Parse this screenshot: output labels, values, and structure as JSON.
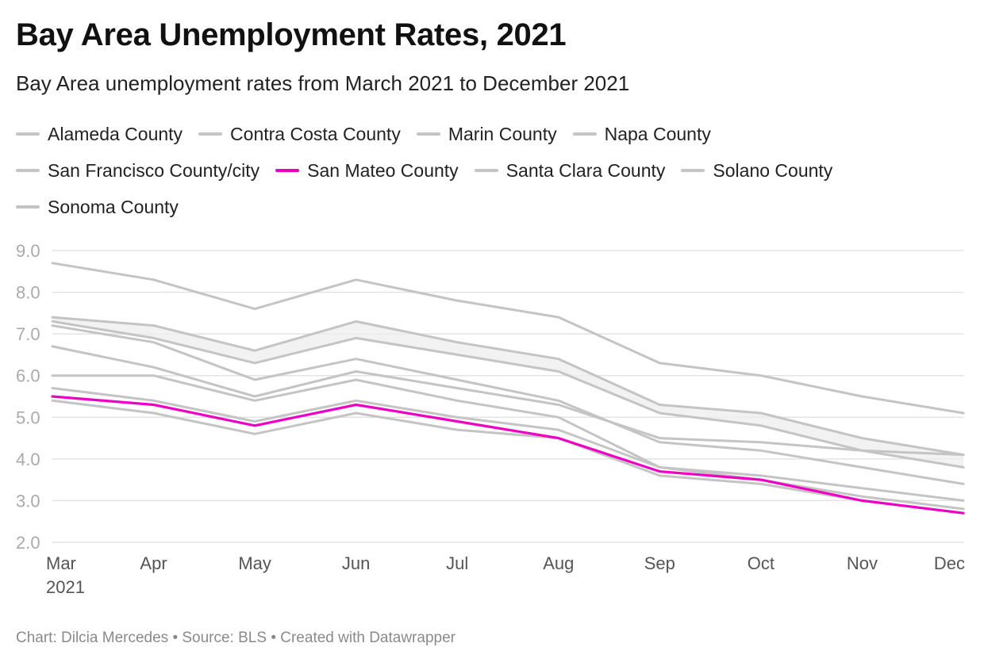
{
  "colors": {
    "muted": "#c4c4c4",
    "highlight": "#ee00c4",
    "band": "#eeeeee",
    "grid": "#e3e3e3"
  },
  "chart_data": {
    "type": "line",
    "title": "Bay Area Unemployment Rates, 2021",
    "subtitle": "Bay Area unemployment rates from March 2021 to December 2021",
    "xlabel": "",
    "ylabel": "",
    "x": [
      "Mar",
      "Apr",
      "May",
      "Jun",
      "Jul",
      "Aug",
      "Sep",
      "Oct",
      "Nov",
      "Dec"
    ],
    "x_year_label": "2021",
    "ylim": [
      2.0,
      9.0
    ],
    "yticks": [
      "9.0",
      "8.0",
      "7.0",
      "6.0",
      "5.0",
      "4.0",
      "3.0",
      "2.0"
    ],
    "grid": true,
    "legend_position": "top",
    "highlight": "San Mateo County",
    "series": [
      {
        "name": "Alameda County",
        "values": [
          7.2,
          6.8,
          5.9,
          6.4,
          5.9,
          5.4,
          4.4,
          4.2,
          3.8,
          3.4
        ]
      },
      {
        "name": "Contra Costa County",
        "values": [
          7.4,
          7.2,
          6.6,
          7.3,
          6.8,
          6.4,
          5.3,
          5.1,
          4.5,
          4.1
        ]
      },
      {
        "name": "Marin County",
        "values": [
          5.4,
          5.1,
          4.6,
          5.1,
          4.7,
          4.5,
          3.6,
          3.4,
          3.0,
          2.7
        ]
      },
      {
        "name": "Napa County",
        "values": [
          6.0,
          6.0,
          5.4,
          5.9,
          5.4,
          5.0,
          3.8,
          3.6,
          3.3,
          3.0
        ]
      },
      {
        "name": "San Francisco County/city",
        "values": [
          5.7,
          5.4,
          4.9,
          5.4,
          5.0,
          4.7,
          3.8,
          3.5,
          3.1,
          2.8
        ]
      },
      {
        "name": "San Mateo County",
        "values": [
          5.5,
          5.3,
          4.8,
          5.3,
          4.9,
          4.5,
          3.7,
          3.5,
          3.0,
          2.7
        ]
      },
      {
        "name": "Santa Clara County",
        "values": [
          6.7,
          6.2,
          5.5,
          6.1,
          5.7,
          5.3,
          4.5,
          4.4,
          4.2,
          4.1
        ]
      },
      {
        "name": "Solano County",
        "values": [
          8.7,
          8.3,
          7.6,
          8.3,
          7.8,
          7.4,
          6.3,
          6.0,
          5.5,
          5.1
        ]
      },
      {
        "name": "Sonoma County",
        "values": [
          7.3,
          6.9,
          6.3,
          6.9,
          6.5,
          6.1,
          5.1,
          4.8,
          4.2,
          3.8
        ]
      }
    ],
    "source": "Chart: Dilcia Mercedes • Source: BLS • Created with Datawrapper"
  }
}
